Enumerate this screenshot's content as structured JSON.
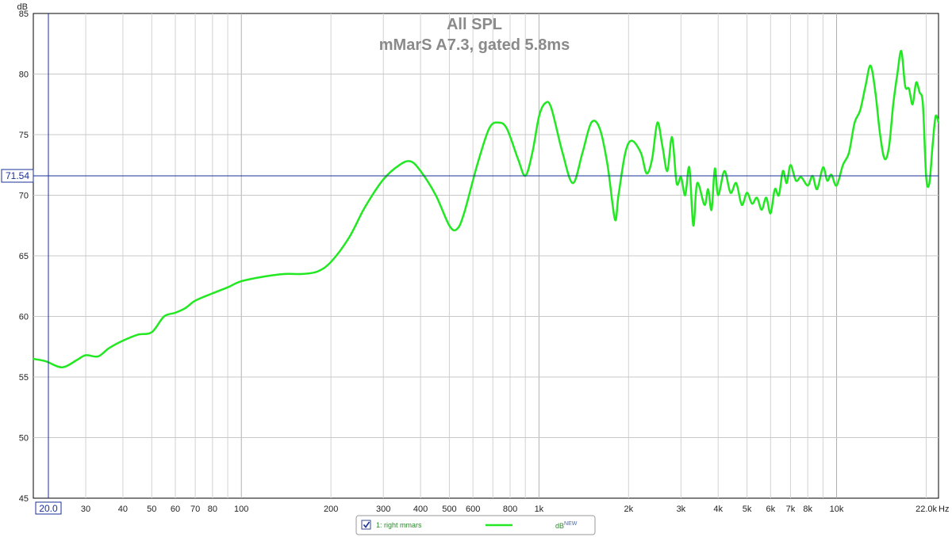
{
  "chart_data": {
    "type": "line",
    "title": "All SPL",
    "subtitle": "mMarS A7.3, gated 5.8ms",
    "ylabel": "dB",
    "xunit": "Hz",
    "xscale": "log",
    "xlim": [
      20,
      22000
    ],
    "ylim": [
      45,
      85
    ],
    "grid": true,
    "x_tick_labels": [
      "20.0",
      "30",
      "40",
      "50",
      "60",
      "70",
      "80",
      "100",
      "200",
      "300",
      "400",
      "500",
      "600",
      "800",
      "1k",
      "2k",
      "3k",
      "4k",
      "5k",
      "6k",
      "7k",
      "8k",
      "10k",
      "22.0k"
    ],
    "y_tick_labels": [
      "45",
      "50",
      "55",
      "60",
      "65",
      "70",
      "75",
      "80",
      "85"
    ],
    "cursor": {
      "frequency_label": "20.0",
      "level_label": "71.54"
    },
    "series": [
      {
        "name": "1: right mmars",
        "color": "#22e822",
        "points": [
          [
            20,
            56.5
          ],
          [
            22,
            56.3
          ],
          [
            25,
            55.8
          ],
          [
            28,
            56.4
          ],
          [
            30,
            56.8
          ],
          [
            33,
            56.7
          ],
          [
            36,
            57.4
          ],
          [
            40,
            58.0
          ],
          [
            45,
            58.5
          ],
          [
            50,
            58.7
          ],
          [
            55,
            60.0
          ],
          [
            60,
            60.3
          ],
          [
            65,
            60.7
          ],
          [
            70,
            61.3
          ],
          [
            80,
            61.9
          ],
          [
            90,
            62.4
          ],
          [
            100,
            62.9
          ],
          [
            120,
            63.3
          ],
          [
            140,
            63.5
          ],
          [
            160,
            63.5
          ],
          [
            180,
            63.7
          ],
          [
            200,
            64.5
          ],
          [
            230,
            66.5
          ],
          [
            260,
            69.0
          ],
          [
            300,
            71.3
          ],
          [
            340,
            72.5
          ],
          [
            370,
            72.8
          ],
          [
            400,
            72.0
          ],
          [
            450,
            70.0
          ],
          [
            500,
            67.5
          ],
          [
            530,
            67.2
          ],
          [
            560,
            68.5
          ],
          [
            620,
            72.5
          ],
          [
            680,
            75.5
          ],
          [
            730,
            76.0
          ],
          [
            780,
            75.5
          ],
          [
            850,
            73.0
          ],
          [
            900,
            71.6
          ],
          [
            950,
            73.5
          ],
          [
            1000,
            76.5
          ],
          [
            1050,
            77.6
          ],
          [
            1100,
            77.2
          ],
          [
            1200,
            73.5
          ],
          [
            1300,
            71.0
          ],
          [
            1400,
            73.5
          ],
          [
            1500,
            76.0
          ],
          [
            1600,
            75.5
          ],
          [
            1700,
            72.5
          ],
          [
            1800,
            68.0
          ],
          [
            1850,
            70.0
          ],
          [
            1950,
            73.5
          ],
          [
            2050,
            74.5
          ],
          [
            2200,
            73.5
          ],
          [
            2300,
            71.8
          ],
          [
            2400,
            73.0
          ],
          [
            2500,
            76.0
          ],
          [
            2600,
            74.0
          ],
          [
            2700,
            72.0
          ],
          [
            2800,
            74.8
          ],
          [
            2900,
            71.0
          ],
          [
            3000,
            71.5
          ],
          [
            3100,
            70.0
          ],
          [
            3200,
            72.3
          ],
          [
            3300,
            67.5
          ],
          [
            3400,
            71.0
          ],
          [
            3600,
            69.2
          ],
          [
            3700,
            70.5
          ],
          [
            3800,
            68.8
          ],
          [
            3900,
            72.2
          ],
          [
            4000,
            70.0
          ],
          [
            4200,
            72.0
          ],
          [
            4400,
            70.2
          ],
          [
            4600,
            71.0
          ],
          [
            4800,
            69.2
          ],
          [
            5000,
            70.2
          ],
          [
            5200,
            69.3
          ],
          [
            5400,
            69.8
          ],
          [
            5600,
            68.8
          ],
          [
            5800,
            69.8
          ],
          [
            6000,
            68.5
          ],
          [
            6200,
            70.5
          ],
          [
            6400,
            70.0
          ],
          [
            6600,
            72.0
          ],
          [
            6800,
            71.0
          ],
          [
            7000,
            72.5
          ],
          [
            7300,
            71.2
          ],
          [
            7600,
            71.5
          ],
          [
            8000,
            70.8
          ],
          [
            8300,
            71.6
          ],
          [
            8600,
            70.5
          ],
          [
            9000,
            72.3
          ],
          [
            9300,
            71.2
          ],
          [
            9600,
            71.7
          ],
          [
            10000,
            70.8
          ],
          [
            10500,
            72.5
          ],
          [
            11000,
            73.5
          ],
          [
            11500,
            76.0
          ],
          [
            12000,
            77.0
          ],
          [
            12500,
            79.0
          ],
          [
            13000,
            80.7
          ],
          [
            13500,
            78.5
          ],
          [
            14000,
            75.0
          ],
          [
            14500,
            73.0
          ],
          [
            15000,
            74.0
          ],
          [
            15500,
            77.5
          ],
          [
            16000,
            80.0
          ],
          [
            16500,
            81.9
          ],
          [
            17000,
            79.0
          ],
          [
            17500,
            78.8
          ],
          [
            18000,
            77.5
          ],
          [
            18500,
            79.3
          ],
          [
            19000,
            78.5
          ],
          [
            19500,
            77.5
          ],
          [
            20000,
            71.5
          ],
          [
            20500,
            71.0
          ],
          [
            21000,
            74.0
          ],
          [
            21500,
            76.5
          ],
          [
            22000,
            76.0
          ]
        ]
      }
    ],
    "legend": {
      "entry_label": "1: right mmars",
      "checked": true,
      "unit_label": "dB",
      "unit_superscript": "NEW",
      "placement": "bottom-center"
    }
  }
}
